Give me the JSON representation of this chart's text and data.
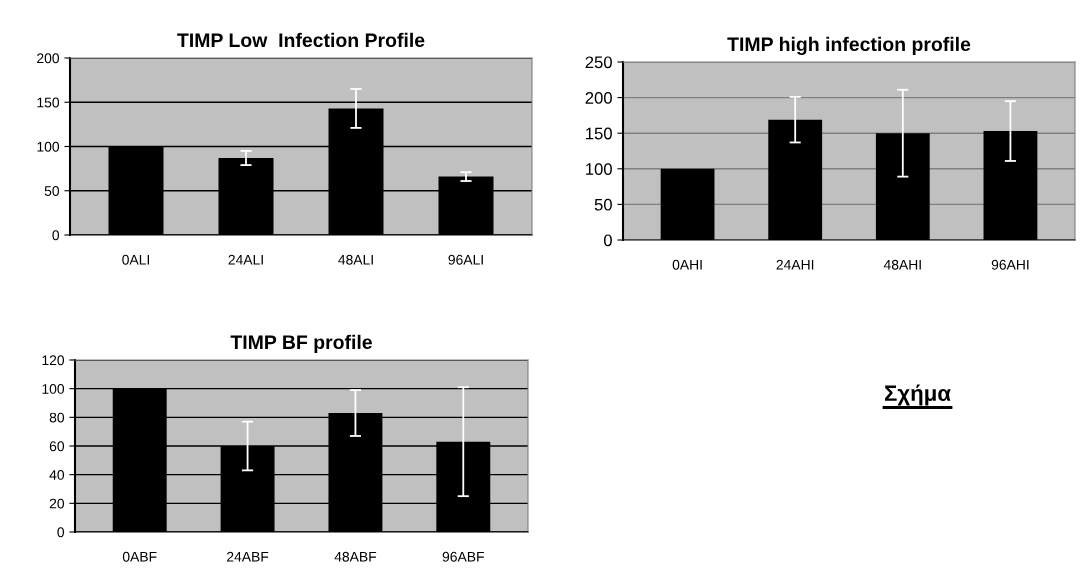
{
  "chart_data": [
    {
      "type": "bar",
      "title": "TIMP Low  Infection Profile",
      "categories": [
        "0ALI",
        "24ALI",
        "48ALI",
        "96ALI"
      ],
      "values": [
        100,
        87,
        143,
        66
      ],
      "errors": [
        null,
        8,
        22,
        5
      ],
      "color": "#000000",
      "ylim": [
        0,
        200
      ],
      "yticks": [
        0,
        50,
        100,
        150,
        200
      ],
      "grid": "y"
    },
    {
      "type": "bar",
      "title": "TIMP high infection profile",
      "categories": [
        "0AHI",
        "24AHI",
        "48AHI",
        "96AHI"
      ],
      "values": [
        100,
        169,
        150,
        153
      ],
      "errors": [
        null,
        32,
        61,
        42
      ],
      "color": "#000000",
      "ylim": [
        0,
        250
      ],
      "yticks": [
        0,
        50,
        100,
        150,
        200,
        250
      ],
      "grid": "y"
    },
    {
      "type": "bar",
      "title": "TIMP BF profile",
      "categories": [
        "0ABF",
        "24ABF",
        "48ABF",
        "96ABF"
      ],
      "values": [
        100,
        60,
        83,
        63
      ],
      "errors": [
        null,
        17,
        16,
        38
      ],
      "color": "#000000",
      "ylim": [
        0,
        120
      ],
      "yticks": [
        0,
        20,
        40,
        60,
        80,
        100,
        120
      ],
      "grid": "y"
    },
    {
      "type": "other",
      "annotations": [
        "Σχήμα"
      ]
    }
  ]
}
